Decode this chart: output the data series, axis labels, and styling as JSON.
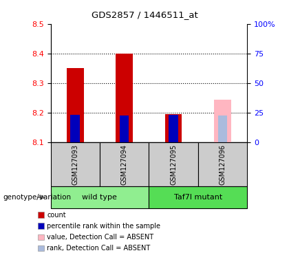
{
  "title": "GDS2857 / 1446511_at",
  "samples": [
    "GSM127093",
    "GSM127094",
    "GSM127095",
    "GSM127096"
  ],
  "groups": [
    {
      "name": "wild type",
      "color": "#90EE90",
      "idx": [
        0,
        1
      ]
    },
    {
      "name": "Taf7l mutant",
      "color": "#55DD55",
      "idx": [
        2,
        3
      ]
    }
  ],
  "ylim_left": [
    8.1,
    8.5
  ],
  "yticks_left": [
    8.1,
    8.2,
    8.3,
    8.4,
    8.5
  ],
  "ylim_right": [
    0,
    100
  ],
  "yticks_right": [
    0,
    25,
    50,
    75,
    100
  ],
  "yticklabels_right": [
    "0",
    "25",
    "50",
    "75",
    "100%"
  ],
  "red_bar_color": "#CC0000",
  "pink_bar_color": "#FFB6C1",
  "blue_marker_color": "#0000BB",
  "light_blue_marker_color": "#AABBDD",
  "count_values": [
    8.35,
    8.4,
    8.195,
    null
  ],
  "rank_values": [
    8.193,
    8.192,
    8.193,
    null
  ],
  "absent_value": [
    null,
    null,
    null,
    8.245
  ],
  "absent_rank": [
    null,
    null,
    null,
    8.192
  ],
  "legend_items": [
    {
      "color": "#CC0000",
      "label": "count"
    },
    {
      "color": "#0000BB",
      "label": "percentile rank within the sample"
    },
    {
      "color": "#FFB6C1",
      "label": "value, Detection Call = ABSENT"
    },
    {
      "color": "#AABBDD",
      "label": "rank, Detection Call = ABSENT"
    }
  ],
  "genotype_label": "genotype/variation",
  "sample_box_color": "#CCCCCC",
  "bar_width": 0.35
}
